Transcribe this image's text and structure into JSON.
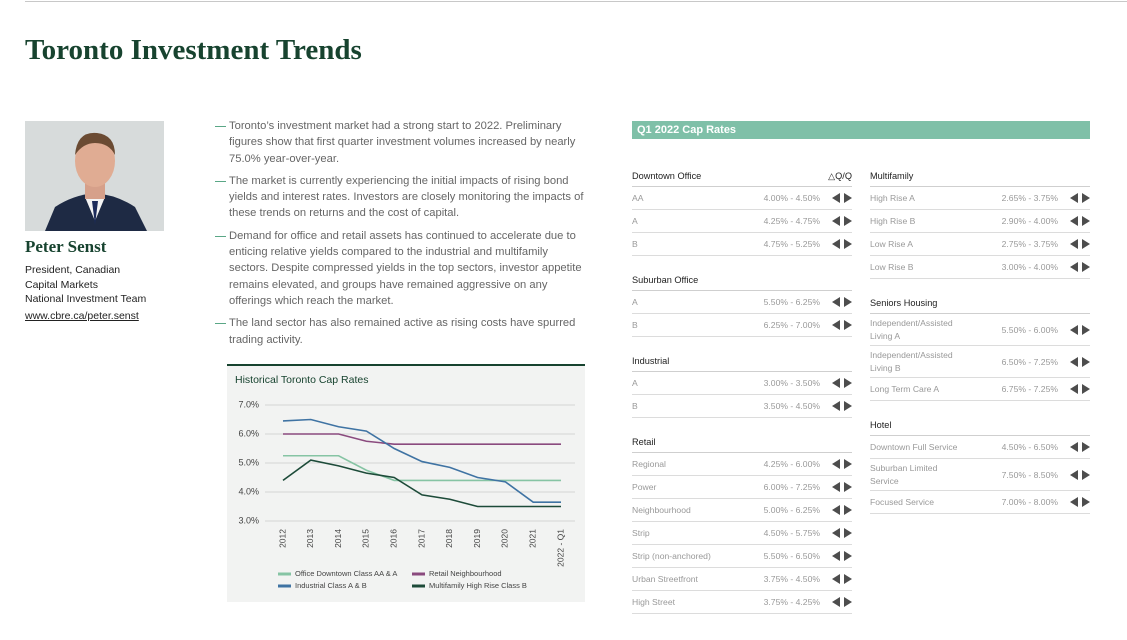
{
  "header": {
    "title": "Toronto Investment Trends"
  },
  "person": {
    "name": "Peter Senst",
    "role": [
      "President, Canadian",
      "Capital Markets",
      "National Investment Team"
    ],
    "url": "www.cbre.ca/peter.senst"
  },
  "bullets": [
    "Toronto’s investment market had a strong start to 2022. Preliminary figures show that first quarter investment volumes increased by nearly 75.0% year-over-year.",
    "The market is currently experiencing the initial impacts of rising bond yields and interest rates. Investors are closely monitoring the impacts of these trends on returns and the cost of capital.",
    "Demand for office and retail assets has continued to accelerate due to enticing relative yields compared to the industrial and multifamily sectors. Despite compressed yields in the top sectors, investor appetite remains elevated, and groups have remained aggressive on any offerings which reach the market.",
    "The land sector has also remained active as rising costs have spurred trading activity."
  ],
  "chart_data": {
    "type": "line",
    "title": "Historical Toronto Cap Rates",
    "categories": [
      "2012",
      "2013",
      "2014",
      "2015",
      "2016",
      "2017",
      "2018",
      "2019",
      "2020",
      "2021",
      "2022 - Q1"
    ],
    "series": [
      {
        "name": "Office Downtown Class AA & A",
        "color": "#86c4a4",
        "values": [
          5.25,
          5.25,
          5.25,
          4.75,
          4.4,
          4.4,
          4.4,
          4.4,
          4.4,
          4.4,
          4.4
        ]
      },
      {
        "name": "Retail Neighbourhood",
        "color": "#8a4a7e",
        "values": [
          6.0,
          6.0,
          6.0,
          5.75,
          5.65,
          5.65,
          5.65,
          5.65,
          5.65,
          5.65,
          5.65
        ]
      },
      {
        "name": "Industrial Class A & B",
        "color": "#3f73a3",
        "values": [
          6.45,
          6.5,
          6.25,
          6.1,
          5.5,
          5.05,
          4.85,
          4.5,
          4.35,
          3.65,
          3.65
        ]
      },
      {
        "name": "Multifamily High Rise Class B",
        "color": "#1d4b39",
        "values": [
          4.4,
          5.1,
          4.9,
          4.65,
          4.5,
          3.9,
          3.75,
          3.5,
          3.5,
          3.5,
          3.5
        ]
      }
    ],
    "ylim": [
      3,
      7
    ],
    "yticks": [
      {
        "value": 3,
        "label": "3.0%"
      },
      {
        "value": 4,
        "label": "4.0%"
      },
      {
        "value": 5,
        "label": "5.0%"
      },
      {
        "value": 6,
        "label": "6.0%"
      },
      {
        "value": 7,
        "label": "7.0%"
      }
    ],
    "grid": true
  },
  "cap_rates": {
    "title": "Q1 2022 Cap Rates",
    "change_label": "△Q/Q",
    "columns": [
      [
        {
          "name": "Downtown Office",
          "rows": [
            [
              "AA",
              "4.00% - 4.50%"
            ],
            [
              "A",
              "4.25% - 4.75%"
            ],
            [
              "B",
              "4.75% - 5.25%"
            ]
          ]
        },
        {
          "name": "Suburban Office",
          "rows": [
            [
              "A",
              "5.50% - 6.25%"
            ],
            [
              "B",
              "6.25% - 7.00%"
            ]
          ]
        },
        {
          "name": "Industrial",
          "rows": [
            [
              "A",
              "3.00% - 3.50%"
            ],
            [
              "B",
              "3.50% - 4.50%"
            ]
          ]
        },
        {
          "name": "Retail",
          "rows": [
            [
              "Regional",
              "4.25% - 6.00%"
            ],
            [
              "Power",
              "6.00% - 7.25%"
            ],
            [
              "Neighbourhood",
              "5.00% - 6.25%"
            ],
            [
              "Strip",
              "4.50% - 5.75%"
            ],
            [
              "Strip (non-anchored)",
              "5.50% - 6.50%"
            ],
            [
              "Urban Streetfront",
              "3.75% - 4.50%"
            ],
            [
              "High Street",
              "3.75% - 4.25%"
            ]
          ]
        }
      ],
      [
        {
          "name": "Multifamily",
          "rows": [
            [
              "High Rise A",
              "2.65% - 3.75%"
            ],
            [
              "High Rise B",
              "2.90% - 4.00%"
            ],
            [
              "Low Rise A",
              "2.75% - 3.75%"
            ],
            [
              "Low Rise B",
              "3.00% - 4.00%"
            ]
          ]
        },
        {
          "name": "Seniors Housing",
          "rows": [
            [
              "Independent/Assisted Living A",
              "5.50% - 6.00%"
            ],
            [
              "Independent/Assisted Living B",
              "6.50% - 7.25%"
            ],
            [
              "Long Term Care A",
              "6.75% - 7.25%"
            ]
          ]
        },
        {
          "name": "Hotel",
          "rows": [
            [
              "Downtown Full Service",
              "4.50% - 6.50%"
            ],
            [
              "Suburban Limited Service",
              "7.50% - 8.50%"
            ],
            [
              "Focused Service",
              "7.00% - 8.00%"
            ]
          ]
        }
      ]
    ]
  }
}
